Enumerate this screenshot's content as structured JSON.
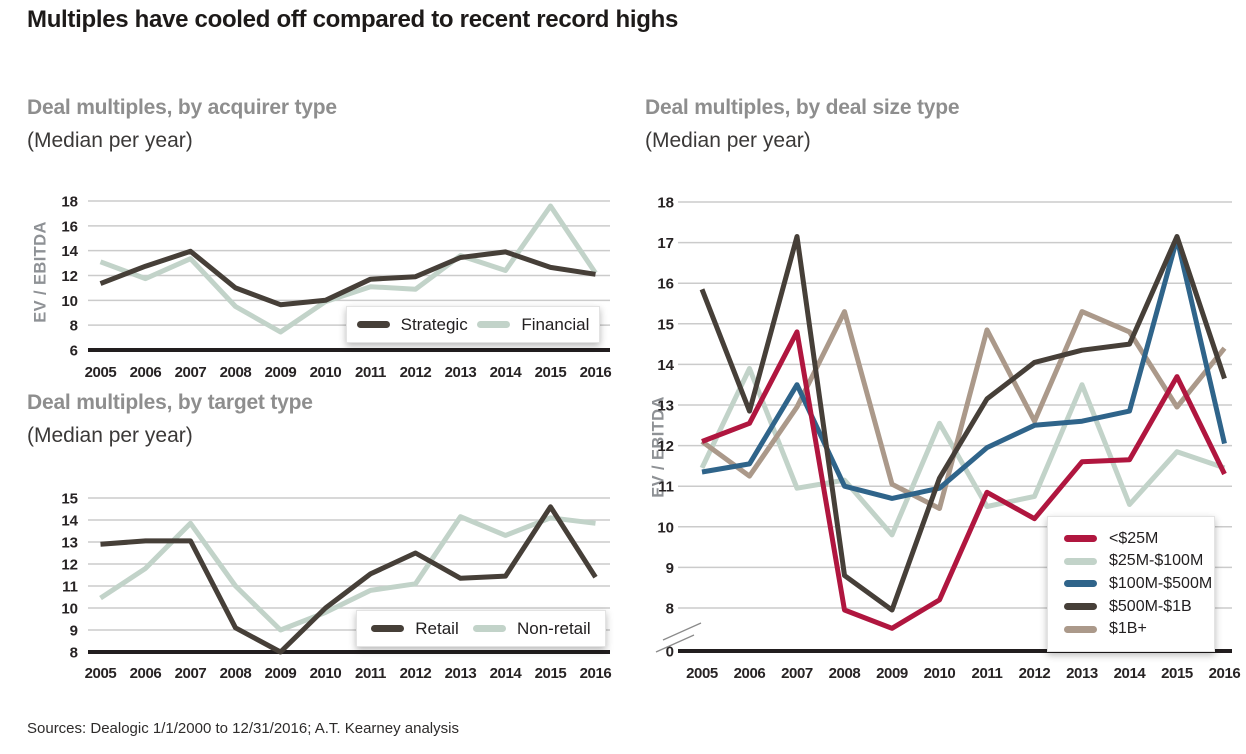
{
  "page_title": "Multiples have cooled off compared to recent record highs",
  "source_note": "Sources: Dealogic 1/1/2000 to 12/31/2016; A.T. Kearney analysis",
  "years": [
    "2005",
    "2006",
    "2007",
    "2008",
    "2009",
    "2010",
    "2011",
    "2012",
    "2013",
    "2014",
    "2015",
    "2016"
  ],
  "colors": {
    "dark": "#463f38",
    "sage": "#c2d3c9",
    "red": "#b0163f",
    "blue": "#2f648a",
    "tan": "#ab998a",
    "grid": "#cbcbcb",
    "axis": "#221e1f",
    "break_mark": "#8a8a8a"
  },
  "chart_data": [
    {
      "type": "line",
      "key": "acquirer",
      "title": "Deal multiples, by acquirer type",
      "subtitle": "(Median per year)",
      "ylabel": "EV / EBITDA",
      "ylim": [
        6,
        18
      ],
      "yticks": [
        18,
        16,
        14,
        12,
        10,
        8,
        6
      ],
      "baseline_value": 6,
      "grid": true,
      "legend_position": "inside-bottom-right",
      "categories": [
        "2005",
        "2006",
        "2007",
        "2008",
        "2009",
        "2010",
        "2011",
        "2012",
        "2013",
        "2014",
        "2015",
        "2016"
      ],
      "series": [
        {
          "name": "Strategic",
          "color_key": "dark",
          "values": [
            11.35,
            12.75,
            13.95,
            11.0,
            9.65,
            10.0,
            11.7,
            11.9,
            13.45,
            13.9,
            12.65,
            12.1
          ]
        },
        {
          "name": "Financial",
          "color_key": "sage",
          "values": [
            13.1,
            11.75,
            13.35,
            9.5,
            7.45,
            9.9,
            11.1,
            10.9,
            13.6,
            12.4,
            17.6,
            12.2
          ]
        }
      ]
    },
    {
      "type": "line",
      "key": "target",
      "title": "Deal multiples, by target type",
      "subtitle": "(Median per year)",
      "ylabel": "",
      "ylim": [
        8,
        15
      ],
      "yticks": [
        15,
        14,
        13,
        12,
        11,
        10,
        9,
        8
      ],
      "baseline_value": 8,
      "grid": true,
      "legend_position": "inside-bottom-right",
      "categories": [
        "2005",
        "2006",
        "2007",
        "2008",
        "2009",
        "2010",
        "2011",
        "2012",
        "2013",
        "2014",
        "2015",
        "2016"
      ],
      "series": [
        {
          "name": "Retail",
          "color_key": "dark",
          "values": [
            12.9,
            13.05,
            13.05,
            9.1,
            8.0,
            10.0,
            11.55,
            12.5,
            11.35,
            11.45,
            14.6,
            11.4
          ]
        },
        {
          "name": "Non-retail",
          "color_key": "sage",
          "values": [
            10.45,
            11.8,
            13.85,
            11.0,
            9.0,
            9.8,
            10.8,
            11.1,
            14.15,
            13.3,
            14.1,
            13.85
          ]
        }
      ]
    },
    {
      "type": "line",
      "key": "dealsize",
      "title": "Deal multiples, by deal size type",
      "subtitle": "(Median per year)",
      "ylabel": "EV / EBITDA",
      "ylim": [
        8,
        18
      ],
      "yticks": [
        18,
        17,
        16,
        15,
        14,
        13,
        12,
        11,
        10,
        9,
        8
      ],
      "axis_break": true,
      "ybase_label": "0",
      "grid": true,
      "legend_position": "inside-bottom-right",
      "categories": [
        "2005",
        "2006",
        "2007",
        "2008",
        "2009",
        "2010",
        "2011",
        "2012",
        "2013",
        "2014",
        "2015",
        "2016"
      ],
      "series": [
        {
          "name": "<$25M",
          "color_key": "red",
          "values": [
            12.1,
            12.55,
            14.8,
            7.95,
            7.5,
            8.2,
            10.85,
            10.2,
            11.6,
            11.65,
            13.7,
            11.3
          ]
        },
        {
          "name": "$25M-$100M",
          "color_key": "sage",
          "values": [
            11.45,
            13.9,
            10.95,
            11.15,
            9.8,
            12.55,
            10.5,
            10.75,
            13.5,
            10.55,
            11.85,
            11.45
          ]
        },
        {
          "name": "$100M-$500M",
          "color_key": "blue",
          "values": [
            11.35,
            11.55,
            13.5,
            11.0,
            10.7,
            10.95,
            11.95,
            12.5,
            12.6,
            12.85,
            17.1,
            12.05
          ]
        },
        {
          "name": "$500M-$1B",
          "color_key": "dark",
          "values": [
            15.85,
            12.85,
            17.15,
            8.8,
            7.95,
            11.2,
            13.15,
            14.05,
            14.35,
            14.5,
            17.15,
            13.65
          ]
        },
        {
          "name": "$1B+",
          "color_key": "tan",
          "values": [
            12.1,
            11.25,
            12.95,
            15.3,
            11.05,
            10.45,
            14.85,
            12.6,
            15.3,
            14.8,
            12.95,
            14.4
          ]
        }
      ]
    }
  ]
}
